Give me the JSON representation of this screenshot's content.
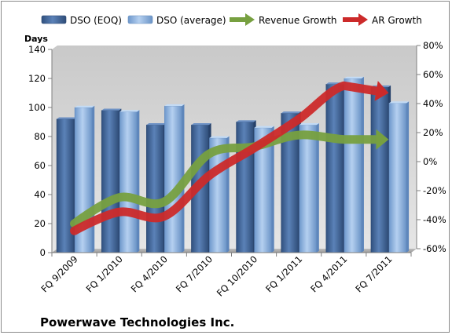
{
  "company_name": "Powerwave Technologies Inc.",
  "chart_data": {
    "type": "bar",
    "title": "",
    "ylabel": "Days",
    "ylim": [
      0,
      140
    ],
    "y_ticks": [
      0,
      20,
      40,
      60,
      80,
      100,
      120,
      140
    ],
    "y2lim": [
      -60,
      80
    ],
    "y2_ticks": [
      "-60%",
      "-40%",
      "-20%",
      "0%",
      "20%",
      "40%",
      "60%",
      "80%"
    ],
    "grid": false,
    "legend_position": "top",
    "categories": [
      "FQ 9/2009",
      "FQ 1/2010",
      "FQ 4/2010",
      "FQ 7/2010",
      "FQ 10/2010",
      "FQ 1/2011",
      "FQ 4/2011",
      "FQ 7/2011"
    ],
    "series": [
      {
        "name": "DSO (EOQ)",
        "kind": "bar",
        "axis": "left",
        "color": "#4a6fa0",
        "values": [
          92,
          98,
          88,
          88,
          90,
          96,
          116,
          114
        ]
      },
      {
        "name": "DSO (average)",
        "kind": "bar",
        "axis": "left",
        "color": "#8db3e2",
        "values": [
          100,
          97,
          101,
          79,
          86,
          88,
          120,
          103
        ]
      },
      {
        "name": "Revenue Growth",
        "kind": "arrow",
        "axis": "right",
        "color": "#77a040",
        "values": [
          -40,
          -22,
          -25,
          8,
          13,
          21,
          18,
          18
        ]
      },
      {
        "name": "AR Growth",
        "kind": "arrow",
        "axis": "right",
        "color": "#cc2a2a",
        "values": [
          -45,
          -32,
          -35,
          -7,
          12,
          32,
          55,
          50
        ]
      }
    ]
  }
}
